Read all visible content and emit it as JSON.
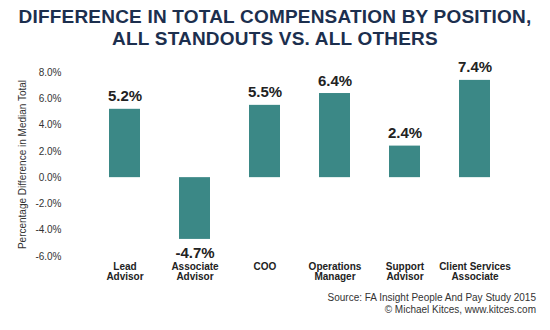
{
  "chart_data": {
    "type": "bar",
    "title": "DIFFERENCE IN TOTAL COMPENSATION BY POSITION, ALL STANDOUTS VS. ALL OTHERS",
    "y_label": "Percentage Difference in Median Total",
    "categories": [
      "Lead\nAdvisor",
      "Associate\nAdvisor",
      "COO",
      "Operations\nManager",
      "Support\nAdvisor",
      "Client Services\nAssociate"
    ],
    "values": [
      5.2,
      -4.7,
      5.5,
      6.4,
      2.4,
      7.4
    ],
    "value_labels": [
      "5.2%",
      "-4.7%",
      "5.5%",
      "6.4%",
      "2.4%",
      "7.4%"
    ],
    "data_labels": true,
    "color": "#3b8886",
    "ylim": [
      -6,
      8
    ],
    "yticks": [
      {
        "value": -6,
        "label": "-6.0%"
      },
      {
        "value": -4,
        "label": "-4.0%"
      },
      {
        "value": -2,
        "label": "-2.0%"
      },
      {
        "value": 0,
        "label": "0.0%"
      },
      {
        "value": 2,
        "label": "2.0%"
      },
      {
        "value": 4,
        "label": "4.0%"
      },
      {
        "value": 6,
        "label": "6.0%"
      },
      {
        "value": 8,
        "label": "8.0%"
      }
    ],
    "grid": false,
    "source": "Source: FA Insight People And Pay Study 2015",
    "credit": "© Michael Kitces, www.kitces.com"
  }
}
